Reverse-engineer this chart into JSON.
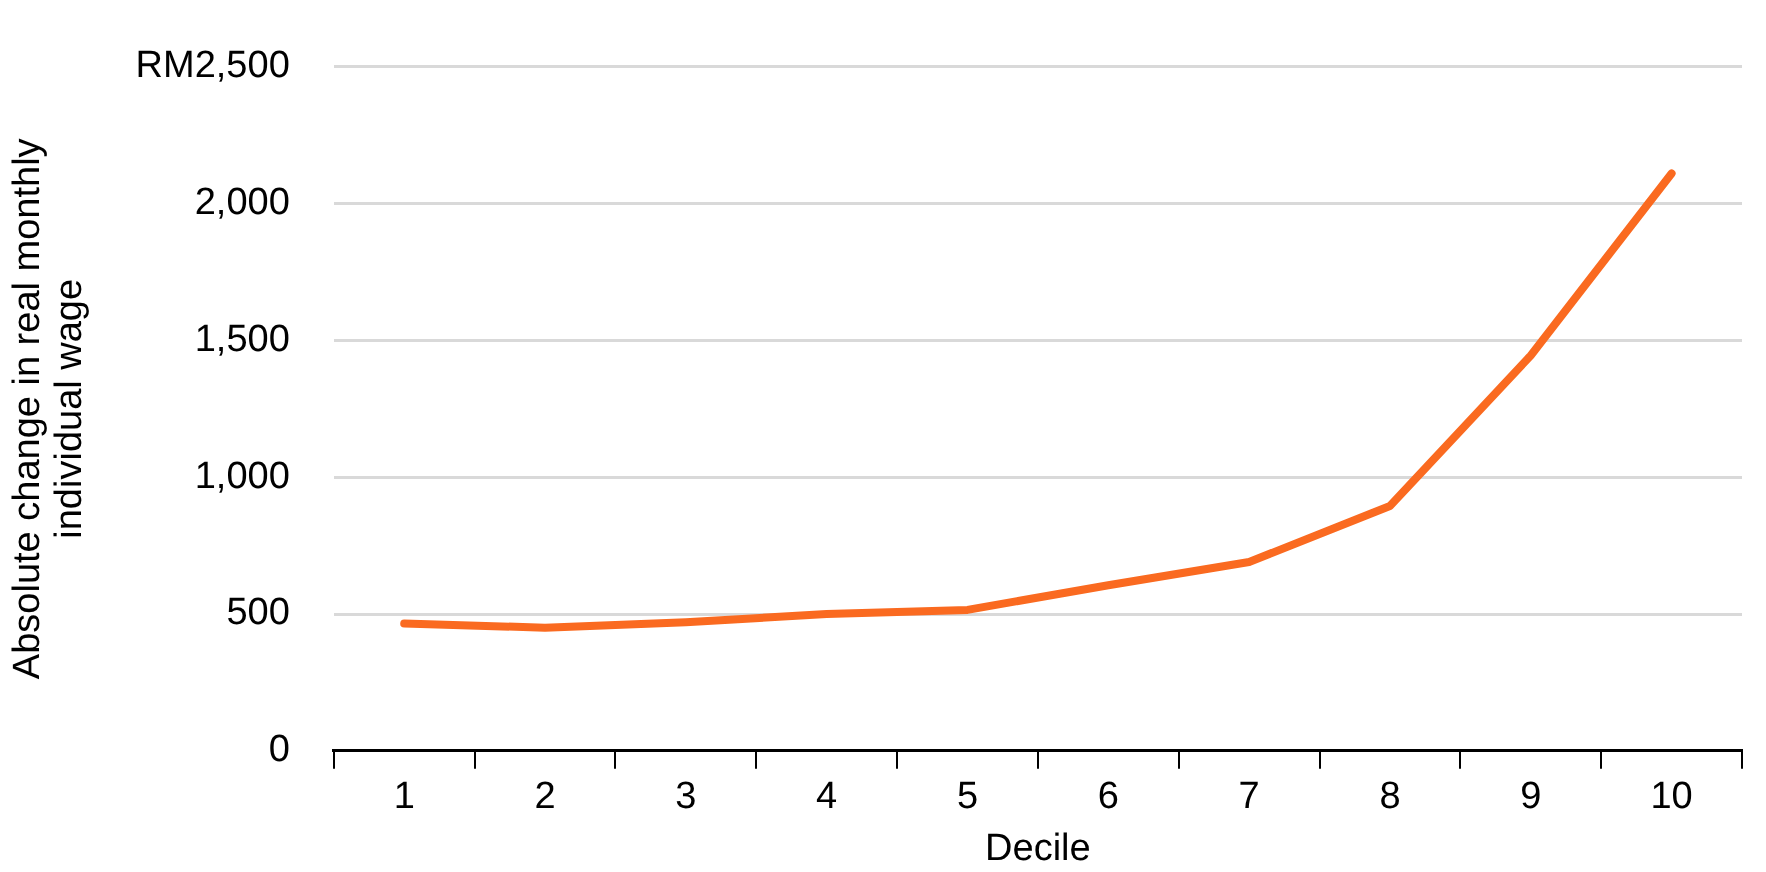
{
  "chart_data": {
    "type": "line",
    "xlabel": "Decile",
    "ylabel": "Absolute change in real monthly individual wage",
    "categories": [
      "1",
      "2",
      "3",
      "4",
      "5",
      "6",
      "7",
      "8",
      "9",
      "10"
    ],
    "series": [
      {
        "color": "#fa6a20",
        "values": [
          465,
          450,
          470,
          500,
          515,
          605,
          690,
          895,
          1445,
          2110
        ]
      }
    ],
    "ylim": [
      0,
      2500
    ],
    "yticks": [
      0,
      500,
      {
        "value": 1000,
        "label": "1,000"
      },
      {
        "value": 1500,
        "label": "1,500"
      },
      {
        "value": 2000,
        "label": "2,000"
      },
      {
        "value": 2500,
        "label": "RM2,500"
      }
    ],
    "grid": "y",
    "legend": false,
    "marker": "none",
    "line_style": "solid"
  }
}
